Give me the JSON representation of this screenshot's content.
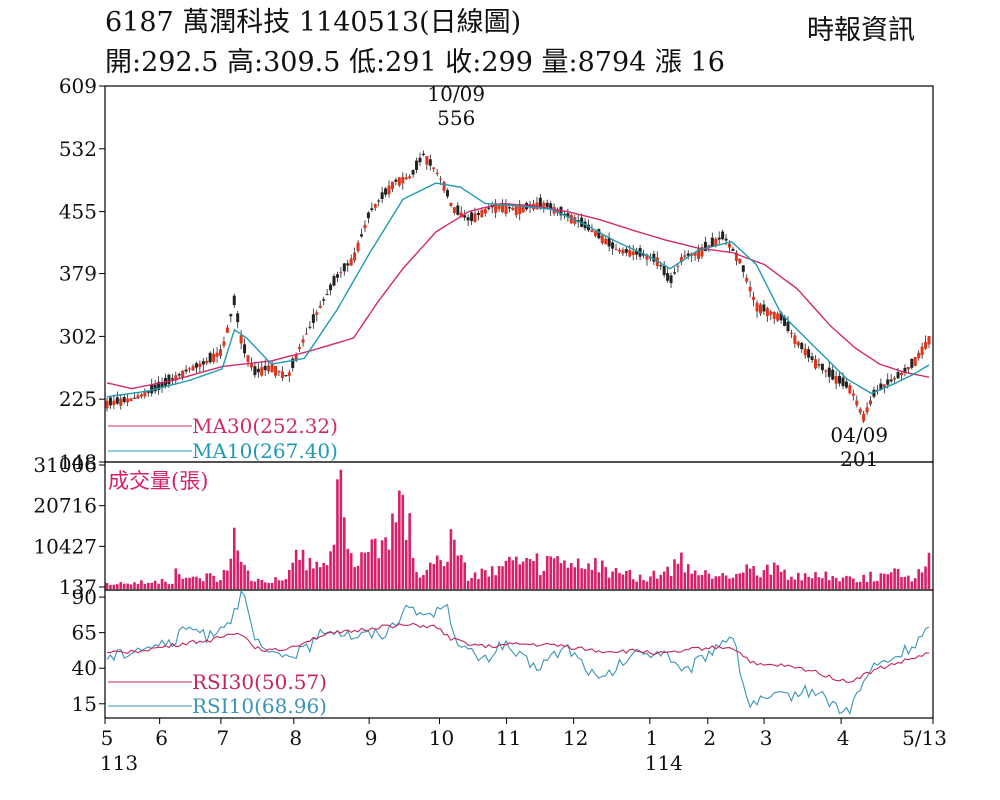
{
  "header": {
    "title": "6187  萬潤科技 1140513(日線圖)",
    "source": "時報資訊",
    "quote": {
      "open_label": "開",
      "open": "292.5",
      "high_label": "高",
      "high": "309.5",
      "low_label": "低",
      "low": "291",
      "close_label": "收",
      "close": "299",
      "volume_label": "量",
      "volume": "8794",
      "change_label": "漲",
      "change": "16"
    }
  },
  "colors": {
    "up": "#e0341c",
    "down": "#222222",
    "ma30": "#d12a6a",
    "ma10": "#1f9bb0",
    "volume": "#d6206a",
    "rsi30": "#c4245e",
    "rsi10": "#3a94b4",
    "frame": "#000000"
  },
  "chart_data": [
    {
      "type": "candlestick",
      "panel": "price",
      "ylim": [
        148,
        609
      ],
      "y_ticks": [
        "609",
        "532",
        "455",
        "379",
        "302",
        "225",
        "148"
      ],
      "annotations": [
        {
          "label_date": "10/09",
          "label_value": "556",
          "x": 0.42,
          "y": 556
        },
        {
          "label_date": "04/09",
          "label_value": "201",
          "x": 0.92,
          "y": 201
        }
      ],
      "legend": [
        {
          "name": "MA30",
          "text": "MA30(252.32)",
          "value": 252.32
        },
        {
          "name": "MA10",
          "text": "MA10(267.40)",
          "value": 267.4
        }
      ],
      "close_anchors": [
        [
          0,
          220
        ],
        [
          0.03,
          225
        ],
        [
          0.06,
          238
        ],
        [
          0.08,
          250
        ],
        [
          0.1,
          262
        ],
        [
          0.12,
          270
        ],
        [
          0.14,
          285
        ],
        [
          0.155,
          345
        ],
        [
          0.165,
          290
        ],
        [
          0.18,
          258
        ],
        [
          0.2,
          265
        ],
        [
          0.22,
          252
        ],
        [
          0.235,
          290
        ],
        [
          0.26,
          340
        ],
        [
          0.28,
          375
        ],
        [
          0.3,
          398
        ],
        [
          0.32,
          455
        ],
        [
          0.35,
          492
        ],
        [
          0.37,
          498
        ],
        [
          0.385,
          525
        ],
        [
          0.4,
          505
        ],
        [
          0.41,
          488
        ],
        [
          0.42,
          460
        ],
        [
          0.44,
          445
        ],
        [
          0.47,
          462
        ],
        [
          0.5,
          458
        ],
        [
          0.53,
          465
        ],
        [
          0.55,
          455
        ],
        [
          0.57,
          445
        ],
        [
          0.6,
          425
        ],
        [
          0.62,
          408
        ],
        [
          0.65,
          403
        ],
        [
          0.67,
          395
        ],
        [
          0.685,
          368
        ],
        [
          0.7,
          400
        ],
        [
          0.72,
          405
        ],
        [
          0.75,
          425
        ],
        [
          0.77,
          395
        ],
        [
          0.79,
          340
        ],
        [
          0.82,
          325
        ],
        [
          0.84,
          295
        ],
        [
          0.86,
          272
        ],
        [
          0.88,
          255
        ],
        [
          0.905,
          238
        ],
        [
          0.92,
          203
        ],
        [
          0.935,
          235
        ],
        [
          0.95,
          245
        ],
        [
          0.965,
          255
        ],
        [
          0.98,
          268
        ],
        [
          1,
          299
        ]
      ],
      "ma30_anchors": [
        [
          0,
          245
        ],
        [
          0.03,
          238
        ],
        [
          0.08,
          248
        ],
        [
          0.14,
          265
        ],
        [
          0.2,
          272
        ],
        [
          0.25,
          285
        ],
        [
          0.3,
          300
        ],
        [
          0.33,
          345
        ],
        [
          0.36,
          385
        ],
        [
          0.4,
          430
        ],
        [
          0.44,
          455
        ],
        [
          0.48,
          465
        ],
        [
          0.52,
          462
        ],
        [
          0.56,
          455
        ],
        [
          0.6,
          445
        ],
        [
          0.64,
          432
        ],
        [
          0.68,
          420
        ],
        [
          0.72,
          410
        ],
        [
          0.76,
          405
        ],
        [
          0.8,
          390
        ],
        [
          0.84,
          360
        ],
        [
          0.88,
          315
        ],
        [
          0.91,
          288
        ],
        [
          0.94,
          268
        ],
        [
          0.97,
          258
        ],
        [
          1,
          252
        ]
      ],
      "ma10_anchors": [
        [
          0,
          228
        ],
        [
          0.05,
          235
        ],
        [
          0.1,
          248
        ],
        [
          0.14,
          262
        ],
        [
          0.155,
          310
        ],
        [
          0.17,
          300
        ],
        [
          0.2,
          268
        ],
        [
          0.24,
          275
        ],
        [
          0.28,
          335
        ],
        [
          0.32,
          405
        ],
        [
          0.36,
          470
        ],
        [
          0.4,
          490
        ],
        [
          0.43,
          485
        ],
        [
          0.46,
          465
        ],
        [
          0.5,
          462
        ],
        [
          0.54,
          458
        ],
        [
          0.58,
          440
        ],
        [
          0.62,
          418
        ],
        [
          0.66,
          400
        ],
        [
          0.685,
          385
        ],
        [
          0.72,
          408
        ],
        [
          0.76,
          418
        ],
        [
          0.79,
          390
        ],
        [
          0.82,
          330
        ],
        [
          0.86,
          290
        ],
        [
          0.9,
          250
        ],
        [
          0.93,
          232
        ],
        [
          0.96,
          245
        ],
        [
          0.98,
          255
        ],
        [
          1,
          267
        ]
      ]
    },
    {
      "type": "bar",
      "panel": "volume",
      "title": "成交量(張)",
      "y_ticks": [
        "31006",
        "20716",
        "10427",
        "137"
      ],
      "ylim": [
        137,
        31006
      ],
      "level_anchors": [
        [
          0,
          1200
        ],
        [
          0.08,
          1800
        ],
        [
          0.085,
          4500
        ],
        [
          0.1,
          2200
        ],
        [
          0.12,
          3500
        ],
        [
          0.14,
          2600
        ],
        [
          0.155,
          11500
        ],
        [
          0.165,
          6000
        ],
        [
          0.18,
          2200
        ],
        [
          0.22,
          2400
        ],
        [
          0.235,
          11000
        ],
        [
          0.25,
          6500
        ],
        [
          0.26,
          5500
        ],
        [
          0.275,
          13000
        ],
        [
          0.285,
          31006
        ],
        [
          0.3,
          3500
        ],
        [
          0.32,
          12500
        ],
        [
          0.33,
          14000
        ],
        [
          0.345,
          18000
        ],
        [
          0.36,
          21000
        ],
        [
          0.37,
          16000
        ],
        [
          0.38,
          4000
        ],
        [
          0.42,
          11500
        ],
        [
          0.44,
          3500
        ],
        [
          0.5,
          6500
        ],
        [
          0.55,
          6500
        ],
        [
          0.6,
          5500
        ],
        [
          0.65,
          2800
        ],
        [
          0.68,
          3800
        ],
        [
          0.7,
          6800
        ],
        [
          0.72,
          3200
        ],
        [
          0.76,
          3800
        ],
        [
          0.8,
          6000
        ],
        [
          0.84,
          3200
        ],
        [
          0.88,
          3000
        ],
        [
          0.92,
          2800
        ],
        [
          0.96,
          3800
        ],
        [
          0.985,
          3000
        ],
        [
          1,
          8794
        ]
      ]
    },
    {
      "type": "line",
      "panel": "rsi",
      "y_ticks": [
        "90",
        "65",
        "40",
        "15"
      ],
      "ylim": [
        5,
        95
      ],
      "legend": [
        {
          "name": "RSI30",
          "text": "RSI30(50.57)",
          "value": 50.57
        },
        {
          "name": "RSI10",
          "text": "RSI10(68.96)",
          "value": 68.96
        }
      ],
      "rsi30_anchors": [
        [
          0,
          50
        ],
        [
          0.06,
          54
        ],
        [
          0.1,
          58
        ],
        [
          0.13,
          60
        ],
        [
          0.16,
          66
        ],
        [
          0.18,
          55
        ],
        [
          0.2,
          52
        ],
        [
          0.22,
          54
        ],
        [
          0.26,
          63
        ],
        [
          0.3,
          66
        ],
        [
          0.34,
          70
        ],
        [
          0.38,
          70
        ],
        [
          0.4,
          69
        ],
        [
          0.42,
          60
        ],
        [
          0.46,
          55
        ],
        [
          0.5,
          57
        ],
        [
          0.55,
          56
        ],
        [
          0.6,
          52
        ],
        [
          0.65,
          52
        ],
        [
          0.68,
          50
        ],
        [
          0.72,
          54
        ],
        [
          0.76,
          55
        ],
        [
          0.79,
          42
        ],
        [
          0.82,
          42
        ],
        [
          0.86,
          38
        ],
        [
          0.9,
          30
        ],
        [
          0.94,
          40
        ],
        [
          0.97,
          45
        ],
        [
          1,
          50.57
        ]
      ],
      "rsi10_anchors": [
        [
          0,
          47
        ],
        [
          0.04,
          55
        ],
        [
          0.08,
          58
        ],
        [
          0.1,
          70
        ],
        [
          0.12,
          62
        ],
        [
          0.15,
          75
        ],
        [
          0.165,
          92
        ],
        [
          0.18,
          60
        ],
        [
          0.2,
          48
        ],
        [
          0.24,
          52
        ],
        [
          0.27,
          69
        ],
        [
          0.3,
          63
        ],
        [
          0.34,
          65
        ],
        [
          0.36,
          80
        ],
        [
          0.4,
          78
        ],
        [
          0.41,
          88
        ],
        [
          0.43,
          55
        ],
        [
          0.46,
          45
        ],
        [
          0.48,
          58
        ],
        [
          0.52,
          40
        ],
        [
          0.56,
          55
        ],
        [
          0.6,
          30
        ],
        [
          0.64,
          50
        ],
        [
          0.68,
          52
        ],
        [
          0.7,
          35
        ],
        [
          0.74,
          55
        ],
        [
          0.76,
          65
        ],
        [
          0.78,
          15
        ],
        [
          0.82,
          20
        ],
        [
          0.86,
          25
        ],
        [
          0.9,
          8
        ],
        [
          0.93,
          40
        ],
        [
          0.96,
          48
        ],
        [
          0.985,
          58
        ],
        [
          1,
          68.96
        ]
      ]
    }
  ],
  "x_axis": {
    "months": [
      {
        "label": "5",
        "pos": 0.0
      },
      {
        "label": "6",
        "pos": 0.066
      },
      {
        "label": "7",
        "pos": 0.14
      },
      {
        "label": "8",
        "pos": 0.228
      },
      {
        "label": "9",
        "pos": 0.319
      },
      {
        "label": "10",
        "pos": 0.404
      },
      {
        "label": "11",
        "pos": 0.485
      },
      {
        "label": "12",
        "pos": 0.566
      },
      {
        "label": "1",
        "pos": 0.658
      },
      {
        "label": "2",
        "pos": 0.728
      },
      {
        "label": "3",
        "pos": 0.796
      },
      {
        "label": "4",
        "pos": 0.889
      },
      {
        "label": "5/13",
        "pos": 1.0
      }
    ],
    "years": [
      {
        "label": "113",
        "pos": 0.0
      },
      {
        "label": "114",
        "pos": 0.658
      }
    ]
  }
}
